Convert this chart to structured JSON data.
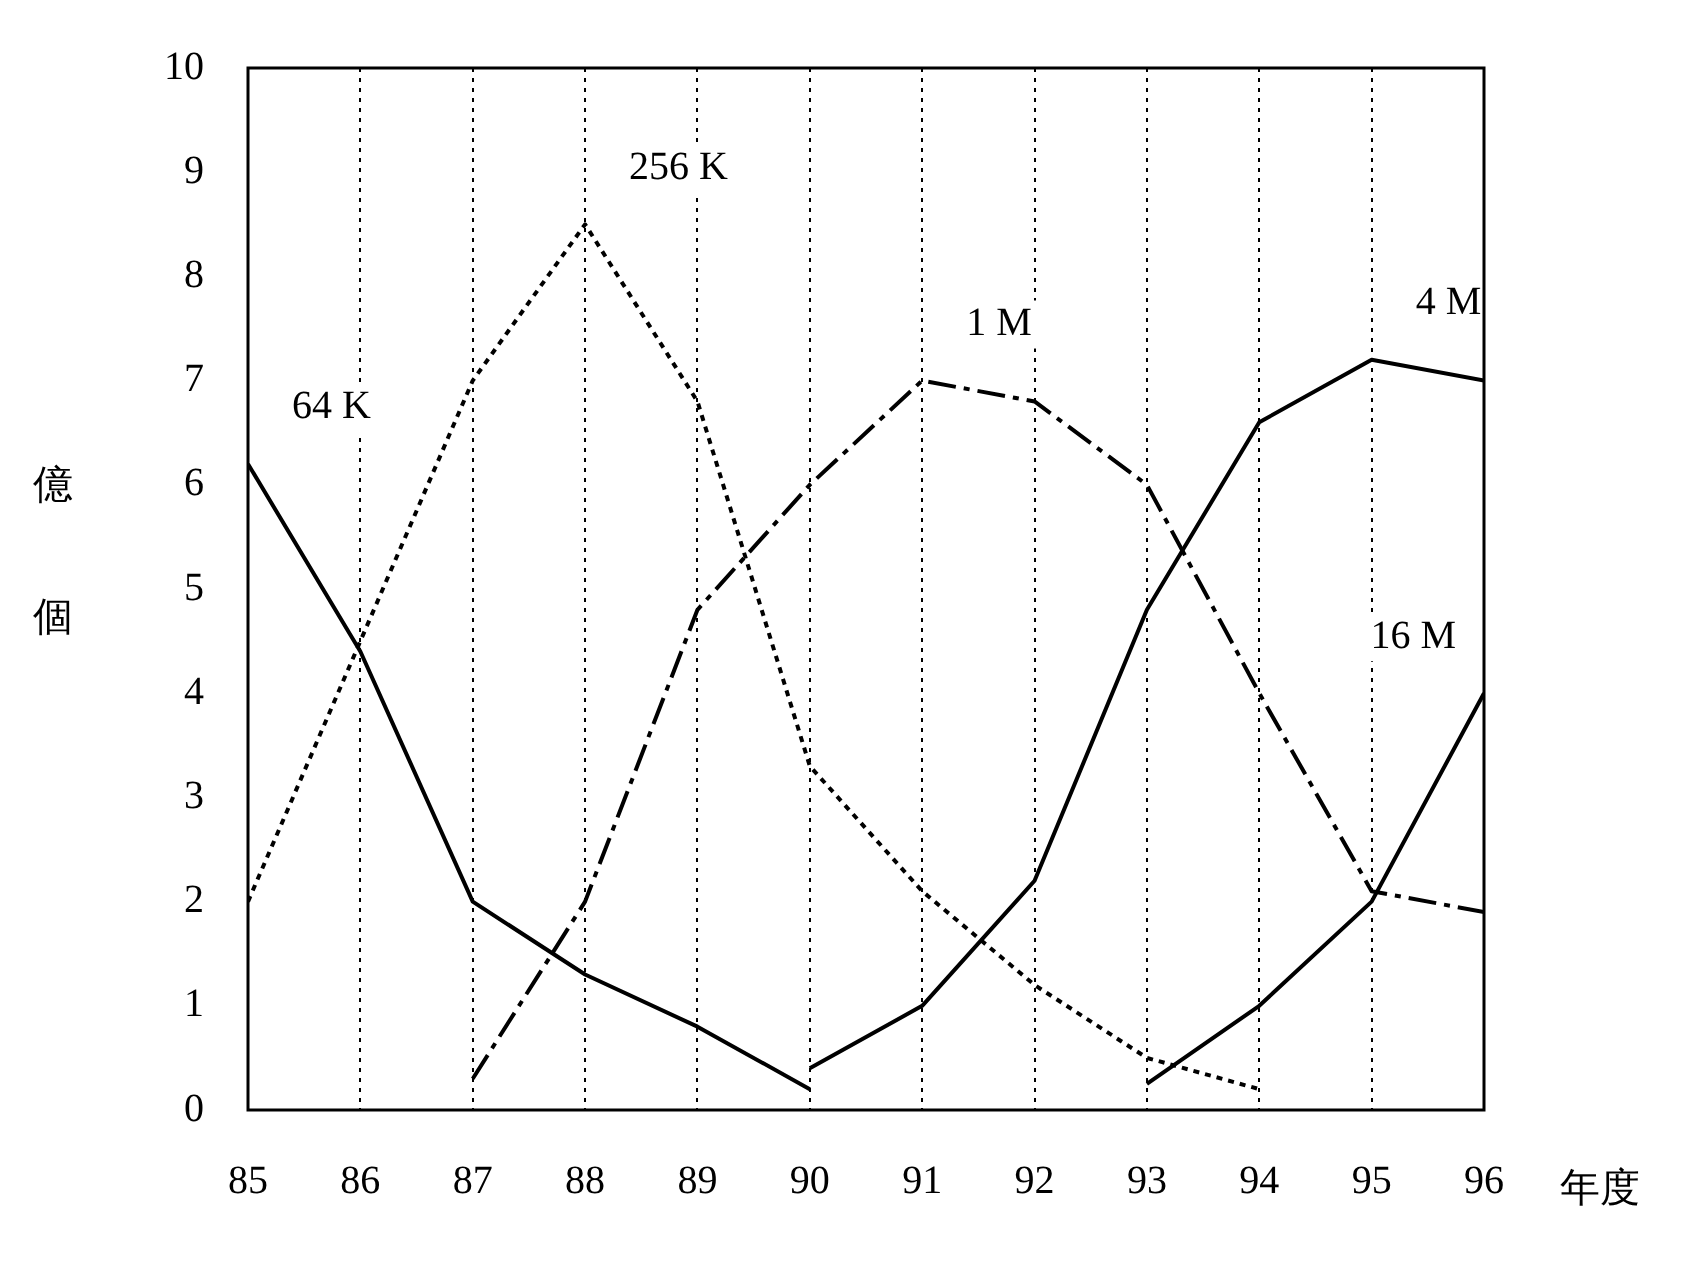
{
  "chart_data": {
    "type": "line",
    "xlabel": "年度",
    "ylabel": "億個",
    "xlim": [
      85,
      96
    ],
    "xticks": [
      85,
      86,
      87,
      88,
      89,
      90,
      91,
      92,
      93,
      94,
      95,
      96
    ],
    "ylim": [
      0,
      10
    ],
    "yticks": [
      0,
      1,
      2,
      3,
      4,
      5,
      6,
      7,
      8,
      9,
      10
    ],
    "grid": "x",
    "legend": false,
    "marker": "none",
    "series": [
      {
        "name": "64 K",
        "color": "#000000",
        "line_style": "solid",
        "x": [
          85,
          86,
          87,
          88,
          89,
          90
        ],
        "values": [
          6.2,
          4.4,
          2.0,
          1.3,
          0.8,
          0.2
        ]
      },
      {
        "name": "256 K",
        "color": "#000000",
        "line_style": "dotted",
        "x": [
          85,
          86,
          87,
          88,
          89,
          90,
          91,
          92,
          93,
          94
        ],
        "values": [
          2.0,
          4.5,
          7.0,
          8.5,
          6.8,
          3.3,
          2.1,
          1.2,
          0.5,
          0.2
        ]
      },
      {
        "name": "1 M",
        "color": "#000000",
        "line_style": "dashed",
        "x": [
          87,
          88,
          89,
          90,
          91,
          92,
          93,
          94,
          95,
          96
        ],
        "values": [
          0.3,
          2.0,
          4.8,
          6.0,
          7.0,
          6.8,
          6.0,
          4.0,
          2.1,
          1.9
        ]
      },
      {
        "name": "4 M",
        "color": "#000000",
        "line_style": "solid",
        "x": [
          90,
          91,
          92,
          93,
          94,
          95,
          96
        ],
        "values": [
          0.4,
          1.0,
          2.2,
          4.8,
          6.6,
          7.2,
          7.0
        ]
      },
      {
        "name": "16 M",
        "color": "#000000",
        "line_style": "solid",
        "x": [
          93,
          94,
          95,
          96
        ],
        "values": [
          0.25,
          1.0,
          2.0,
          4.0
        ]
      }
    ]
  }
}
